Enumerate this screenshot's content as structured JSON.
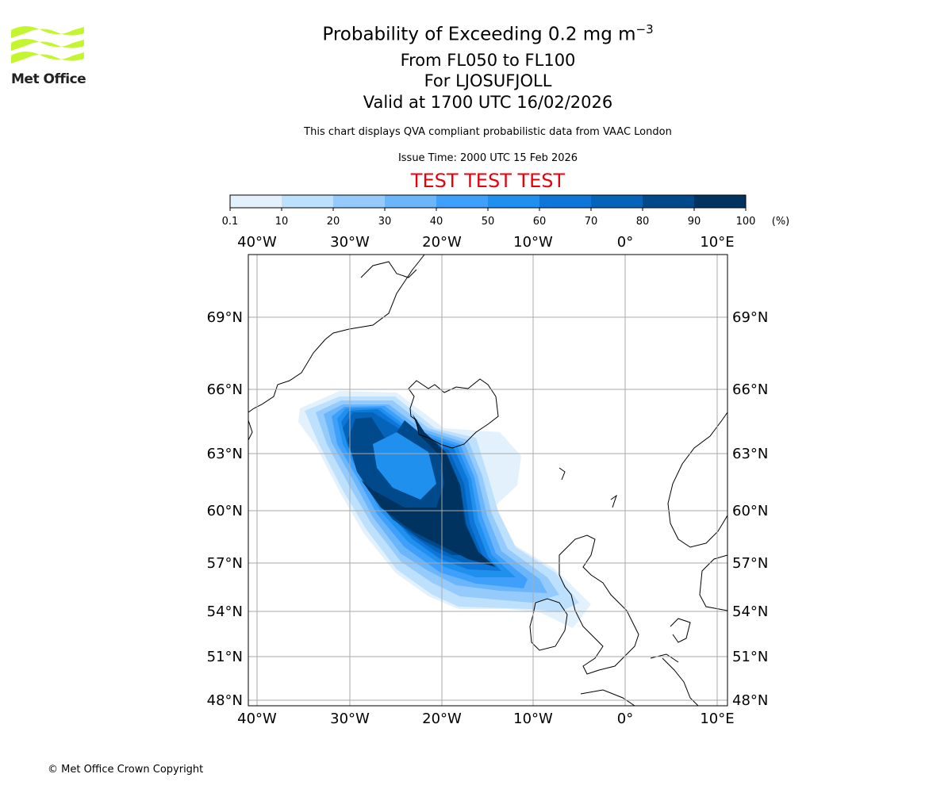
{
  "logo": {
    "text": "Met Office"
  },
  "title": {
    "main": "Probability of Exceeding 0.2 mg m",
    "main_sup": "−3",
    "levels": "From FL050 to FL100",
    "volcano": "For LJOSUFJOLL",
    "valid": "Valid at 1700 UTC 16/02/2026"
  },
  "subtitle": "This chart displays QVA compliant probabilistic data from VAAC London",
  "issue_time": "Issue Time: 2000 UTC 15 Feb 2026",
  "test_banner": "TEST TEST TEST",
  "colorbar": {
    "ticks": [
      "0.1",
      "10",
      "20",
      "30",
      "40",
      "50",
      "60",
      "70",
      "80",
      "90",
      "100"
    ],
    "unit": "(%)",
    "colors": [
      "#e3f1fd",
      "#bde0fc",
      "#94cafc",
      "#6bb5fb",
      "#3fa0fb",
      "#2090ef",
      "#0e76d8",
      "#0464b9",
      "#004a8c",
      "#00335f"
    ]
  },
  "map": {
    "lon_labels": [
      "40°W",
      "30°W",
      "20°W",
      "10°W",
      "0°",
      "10°E"
    ],
    "lat_labels": [
      "69°N",
      "66°N",
      "63°N",
      "60°N",
      "57°N",
      "54°N",
      "51°N",
      "48°N"
    ]
  },
  "copyright": "© Met Office Crown Copyright"
}
